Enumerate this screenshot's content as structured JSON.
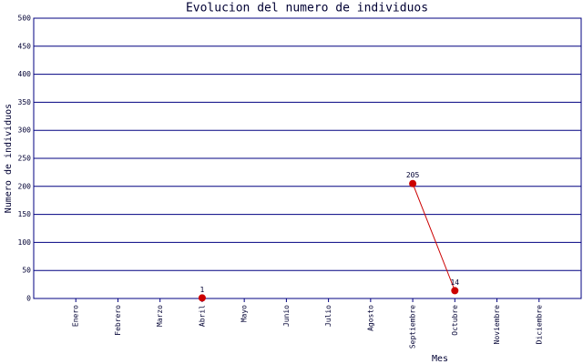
{
  "chart_data": {
    "type": "line",
    "title": "Evolucion del numero de individuos",
    "x_label": "Mes",
    "y_label": "Numero de individuos",
    "categories": [
      "Enero",
      "Febrero",
      "Marzo",
      "Abril",
      "Mayo",
      "Junio",
      "Julio",
      "Agosto",
      "Septiembre",
      "Octubre",
      "Noviembre",
      "Diciembre"
    ],
    "values": [
      null,
      null,
      null,
      1,
      null,
      null,
      null,
      null,
      205,
      14,
      null,
      null
    ],
    "color": "#cc0000",
    "line_color": "#cc0000",
    "grid_color": "#000080",
    "ylim": [
      0,
      500
    ],
    "yticks": [
      0,
      50,
      100,
      150,
      200,
      250,
      300,
      350,
      400,
      450,
      500
    ],
    "grid": true
  }
}
